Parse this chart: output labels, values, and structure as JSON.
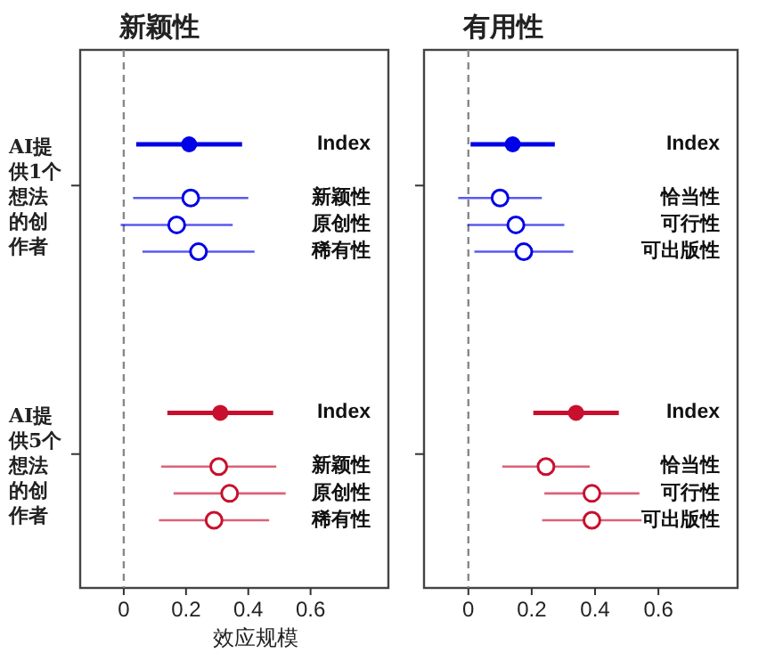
{
  "chart_data": [
    {
      "type": "scatter",
      "orientation": "horizontal",
      "title": "新颖性",
      "xlabel": "效应规模",
      "xlim": [
        -0.14,
        0.85
      ],
      "xticks": [
        0,
        0.2,
        0.4,
        0.6
      ],
      "marker": "circle",
      "grid": false,
      "annotations": [
        "AI提供1个想法的创作者",
        "AI提供5个想法的创作者"
      ],
      "categories": [
        "Index",
        null,
        "新颖性",
        "原创性",
        "稀有性",
        null,
        null,
        null,
        null,
        null,
        "Index",
        null,
        "新颖性",
        "原创性",
        "稀有性"
      ],
      "series": [
        {
          "color": "#0000e6",
          "values": [
            0.21,
            null,
            0.215,
            0.17,
            0.24,
            null,
            null,
            null,
            null,
            null,
            null,
            null,
            null,
            null,
            null
          ],
          "errors": [
            0.17,
            null,
            0.185,
            0.18,
            0.18,
            null,
            null,
            null,
            null,
            null,
            null,
            null,
            null,
            null,
            null
          ]
        },
        {
          "color": "#c8102e",
          "values": [
            null,
            null,
            null,
            null,
            null,
            null,
            null,
            null,
            null,
            null,
            0.31,
            null,
            0.305,
            0.34,
            0.29
          ],
          "errors": [
            null,
            null,
            null,
            null,
            null,
            null,
            null,
            null,
            null,
            null,
            0.17,
            null,
            0.185,
            0.18,
            0.177
          ]
        }
      ],
      "ref_lines": [
        {
          "axis": "x",
          "value": 0,
          "color": "#888888",
          "line_style": "dashed"
        }
      ]
    },
    {
      "type": "scatter",
      "orientation": "horizontal",
      "title": "有用性",
      "xlim": [
        -0.14,
        0.85
      ],
      "xticks": [
        0,
        0.2,
        0.4,
        0.6
      ],
      "marker": "circle",
      "grid": false,
      "categories": [
        "Index",
        null,
        "恰当性",
        "可行性",
        "可出版性",
        null,
        null,
        null,
        null,
        null,
        "Index",
        null,
        "恰当性",
        "可行性",
        "可出版性"
      ],
      "series": [
        {
          "color": "#0000e6",
          "values": [
            0.14,
            null,
            0.1,
            0.15,
            0.175,
            null,
            null,
            null,
            null,
            null,
            null,
            null,
            null,
            null,
            null
          ],
          "errors": [
            0.133,
            null,
            0.132,
            0.153,
            0.156,
            null,
            null,
            null,
            null,
            null,
            null,
            null,
            null,
            null,
            null
          ]
        },
        {
          "color": "#c8102e",
          "values": [
            null,
            null,
            null,
            null,
            null,
            null,
            null,
            null,
            null,
            null,
            0.34,
            null,
            0.245,
            0.39,
            0.39
          ],
          "errors": [
            null,
            null,
            null,
            null,
            null,
            null,
            null,
            null,
            null,
            null,
            0.135,
            null,
            0.138,
            0.15,
            0.157
          ]
        }
      ],
      "ref_lines": [
        {
          "axis": "x",
          "value": 0,
          "color": "#888888",
          "line_style": "dashed"
        }
      ]
    }
  ]
}
